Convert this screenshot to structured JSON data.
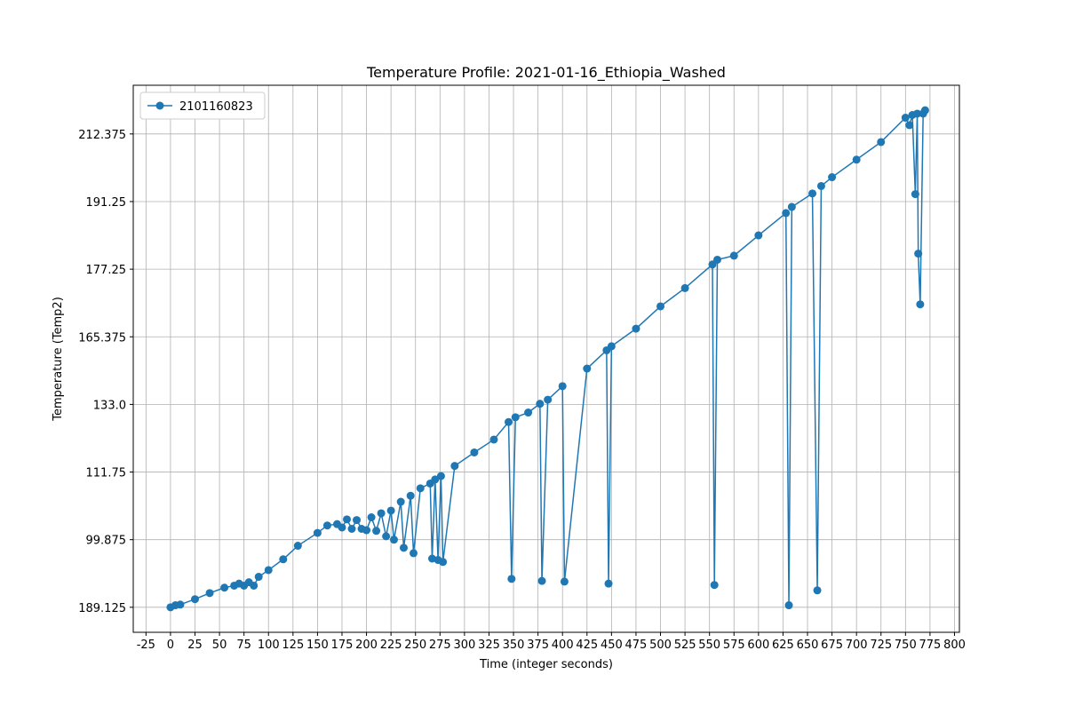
{
  "chart_data": {
    "type": "line",
    "title": "Temperature Profile: 2021-01-16_Ethiopia_Washed",
    "x_label": "Time (integer seconds)",
    "y_label": "Temperature (Temp2)",
    "x": [
      0,
      5,
      10,
      25,
      40,
      55,
      65,
      70,
      75,
      80,
      85,
      90,
      100,
      115,
      130,
      150,
      160,
      170,
      175,
      180,
      185,
      190,
      195,
      200,
      205,
      210,
      215,
      220,
      225,
      228,
      235,
      238,
      245,
      248,
      255,
      265,
      267,
      270,
      273,
      276,
      278,
      290,
      310,
      330,
      345,
      348,
      352,
      365,
      377,
      379,
      385,
      400,
      402,
      425,
      445,
      447,
      450,
      475,
      500,
      525,
      553,
      555,
      558,
      575,
      600,
      628,
      631,
      634,
      655,
      660,
      664,
      675,
      700,
      725,
      750,
      754,
      757,
      760,
      762,
      763,
      765,
      768,
      770
    ],
    "series": [
      {
        "name": "2101160823",
        "color": "#1f77b4",
        "values": [
          0,
          0.03,
          0.04,
          0.12,
          0.21,
          0.29,
          0.32,
          0.35,
          0.32,
          0.37,
          0.32,
          0.45,
          0.55,
          0.71,
          0.91,
          1.1,
          1.21,
          1.23,
          1.18,
          1.3,
          1.16,
          1.29,
          1.16,
          1.14,
          1.33,
          1.13,
          1.39,
          1.05,
          1.43,
          1.0,
          1.56,
          0.88,
          1.65,
          0.8,
          1.76,
          1.83,
          0.72,
          1.89,
          0.7,
          1.94,
          0.67,
          2.09,
          2.29,
          2.48,
          2.74,
          0.42,
          2.81,
          2.88,
          3.01,
          0.39,
          3.07,
          3.27,
          0.38,
          3.53,
          3.8,
          0.35,
          3.86,
          4.12,
          4.45,
          4.72,
          5.07,
          0.33,
          5.14,
          5.2,
          5.5,
          5.83,
          0.03,
          5.92,
          6.12,
          0.25,
          6.23,
          6.36,
          6.62,
          6.88,
          7.24,
          7.13,
          7.28,
          6.11,
          7.3,
          5.23,
          4.48,
          7.3,
          7.35
        ]
      }
    ],
    "xlim": [
      -38,
      805
    ],
    "ylim": [
      -0.37,
      7.72
    ],
    "xticks": [
      -25,
      0,
      25,
      50,
      75,
      100,
      125,
      150,
      175,
      200,
      225,
      250,
      275,
      300,
      325,
      350,
      375,
      400,
      425,
      450,
      475,
      500,
      525,
      550,
      575,
      600,
      625,
      650,
      675,
      700,
      725,
      750,
      775,
      800
    ],
    "yticks": [
      {
        "value": 0,
        "label": "189.125"
      },
      {
        "value": 1,
        "label": "99.875"
      },
      {
        "value": 2,
        "label": "111.75"
      },
      {
        "value": 3,
        "label": "133.0"
      },
      {
        "value": 4,
        "label": "165.375"
      },
      {
        "value": 5,
        "label": "177.25"
      },
      {
        "value": 6,
        "label": "191.25"
      },
      {
        "value": 7,
        "label": "212.375"
      }
    ],
    "grid": true,
    "legend": "upper-left"
  }
}
